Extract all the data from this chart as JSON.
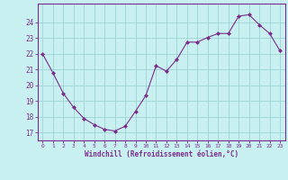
{
  "x": [
    0,
    1,
    2,
    3,
    4,
    5,
    6,
    7,
    8,
    9,
    10,
    11,
    12,
    13,
    14,
    15,
    16,
    17,
    18,
    19,
    20,
    21,
    22,
    23
  ],
  "y": [
    22.0,
    20.8,
    19.5,
    18.6,
    17.9,
    17.5,
    17.2,
    17.1,
    17.4,
    18.35,
    19.35,
    21.25,
    20.9,
    21.65,
    22.75,
    22.75,
    23.05,
    23.3,
    23.3,
    24.4,
    24.5,
    23.85,
    23.3,
    22.2
  ],
  "line_color": "#7b2d8b",
  "marker_color": "#7b2d8b",
  "bg_color": "#c8f0f0",
  "grid_color": "#9ed4d4",
  "axis_color": "#7b2d8b",
  "tick_color": "#7b2d8b",
  "xlabel": "Windchill (Refroidissement éolien,°C)",
  "ylabel_ticks": [
    17,
    18,
    19,
    20,
    21,
    22,
    23,
    24
  ],
  "ylim": [
    16.5,
    25.2
  ],
  "xlim": [
    -0.5,
    23.5
  ],
  "figsize": [
    3.2,
    2.0
  ],
  "dpi": 100
}
